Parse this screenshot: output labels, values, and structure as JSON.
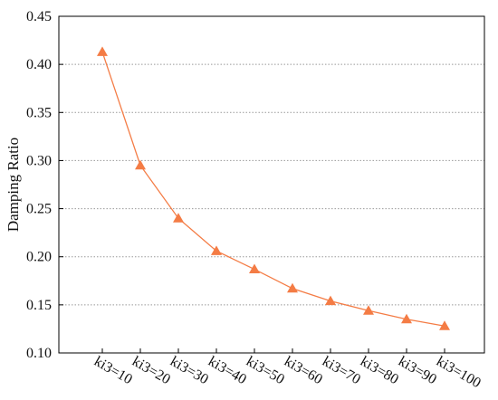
{
  "chart_data": {
    "type": "line",
    "y_label": "Damping Ratio",
    "categories": [
      "ki3=10",
      "ki3=20",
      "ki3=30",
      "ki3=40",
      "ki3=50",
      "ki3=60",
      "ki3=70",
      "ki3=80",
      "ki3=90",
      "ki3=100"
    ],
    "values": [
      0.413,
      0.295,
      0.24,
      0.206,
      0.187,
      0.167,
      0.154,
      0.144,
      0.135,
      0.128
    ],
    "color": "#f47c45",
    "ylim": [
      0.1,
      0.45
    ],
    "yticks": [
      {
        "value": 0.1,
        "label": "0.10"
      },
      {
        "value": 0.15,
        "label": "0.15"
      },
      {
        "value": 0.2,
        "label": "0.20"
      },
      {
        "value": 0.25,
        "label": "0.25"
      },
      {
        "value": 0.3,
        "label": "0.30"
      },
      {
        "value": 0.35,
        "label": "0.35"
      },
      {
        "value": 0.4,
        "label": "0.40"
      },
      {
        "value": 0.45,
        "label": "0.45"
      }
    ],
    "grid": true
  }
}
